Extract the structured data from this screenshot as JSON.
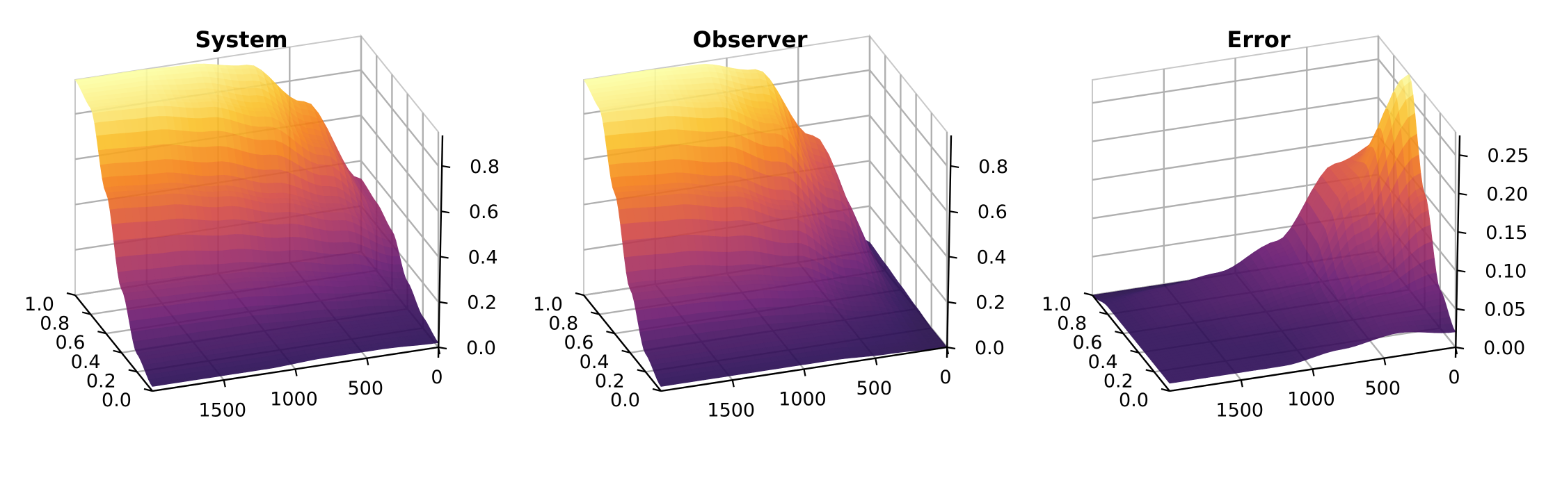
{
  "chart_data": [
    {
      "type": "surface3d",
      "title": "System",
      "x_axis": {
        "range": [
          0,
          2000
        ],
        "ticks": [
          0,
          500,
          1000,
          1500
        ]
      },
      "y_axis": {
        "range": [
          0.0,
          1.0
        ],
        "ticks": [
          0.0,
          0.2,
          0.4,
          0.6,
          0.8,
          1.0
        ]
      },
      "z_axis": {
        "range": [
          0.0,
          0.95
        ],
        "ticks": [
          0.0,
          0.2,
          0.4,
          0.6,
          0.8
        ]
      },
      "surface": {
        "x": [
          0,
          400,
          800,
          1200,
          1600,
          2000
        ],
        "y": [
          0.0,
          0.2,
          0.4,
          0.6,
          0.8,
          1.0
        ],
        "z": [
          [
            0.02,
            0.03,
            0.03,
            0.02,
            0.02,
            0.02
          ],
          [
            0.05,
            0.06,
            0.07,
            0.08,
            0.08,
            0.08
          ],
          [
            0.12,
            0.18,
            0.22,
            0.25,
            0.27,
            0.28
          ],
          [
            0.26,
            0.4,
            0.48,
            0.55,
            0.6,
            0.62
          ],
          [
            0.3,
            0.6,
            0.78,
            0.86,
            0.9,
            0.91
          ],
          [
            0.32,
            0.7,
            0.9,
            0.94,
            0.95,
            0.95
          ]
        ]
      },
      "colormap": "inferno",
      "grid": true
    },
    {
      "type": "surface3d",
      "title": "Observer",
      "x_axis": {
        "range": [
          0,
          2000
        ],
        "ticks": [
          0,
          500,
          1000,
          1500
        ]
      },
      "y_axis": {
        "range": [
          0.0,
          1.0
        ],
        "ticks": [
          0.0,
          0.2,
          0.4,
          0.6,
          0.8,
          1.0
        ]
      },
      "z_axis": {
        "range": [
          0.0,
          0.95
        ],
        "ticks": [
          0.0,
          0.2,
          0.4,
          0.6,
          0.8
        ]
      },
      "surface": {
        "x": [
          0,
          400,
          800,
          1200,
          1600,
          2000
        ],
        "y": [
          0.0,
          0.2,
          0.4,
          0.6,
          0.8,
          1.0
        ],
        "z": [
          [
            0.0,
            0.01,
            0.02,
            0.02,
            0.02,
            0.02
          ],
          [
            0.0,
            0.04,
            0.07,
            0.08,
            0.08,
            0.08
          ],
          [
            0.01,
            0.1,
            0.2,
            0.24,
            0.27,
            0.28
          ],
          [
            0.02,
            0.25,
            0.45,
            0.55,
            0.6,
            0.62
          ],
          [
            0.03,
            0.45,
            0.75,
            0.86,
            0.9,
            0.91
          ],
          [
            0.04,
            0.55,
            0.88,
            0.94,
            0.95,
            0.95
          ]
        ]
      },
      "colormap": "inferno",
      "grid": true
    },
    {
      "type": "surface3d",
      "title": "Error",
      "x_axis": {
        "range": [
          0,
          2000
        ],
        "ticks": [
          0,
          500,
          1000,
          1500
        ]
      },
      "y_axis": {
        "range": [
          0.0,
          1.0
        ],
        "ticks": [
          0.0,
          0.2,
          0.4,
          0.6,
          0.8,
          1.0
        ]
      },
      "z_axis": {
        "range": [
          0.0,
          0.28
        ],
        "ticks": [
          0.0,
          0.05,
          0.1,
          0.15,
          0.2,
          0.25
        ]
      },
      "surface": {
        "x": [
          0,
          400,
          800,
          1200,
          1600,
          2000
        ],
        "y": [
          0.0,
          0.2,
          0.4,
          0.6,
          0.8,
          1.0
        ],
        "z": [
          [
            0.02,
            0.03,
            0.02,
            0.01,
            0.01,
            0.01
          ],
          [
            0.05,
            0.04,
            0.02,
            0.01,
            0.01,
            0.01
          ],
          [
            0.15,
            0.08,
            0.03,
            0.02,
            0.01,
            0.01
          ],
          [
            0.28,
            0.15,
            0.05,
            0.03,
            0.02,
            0.01
          ],
          [
            0.18,
            0.15,
            0.06,
            0.03,
            0.02,
            0.01
          ],
          [
            0.05,
            0.08,
            0.02,
            0.0,
            0.0,
            0.0
          ]
        ]
      },
      "colormap": "inferno",
      "grid": true
    }
  ]
}
